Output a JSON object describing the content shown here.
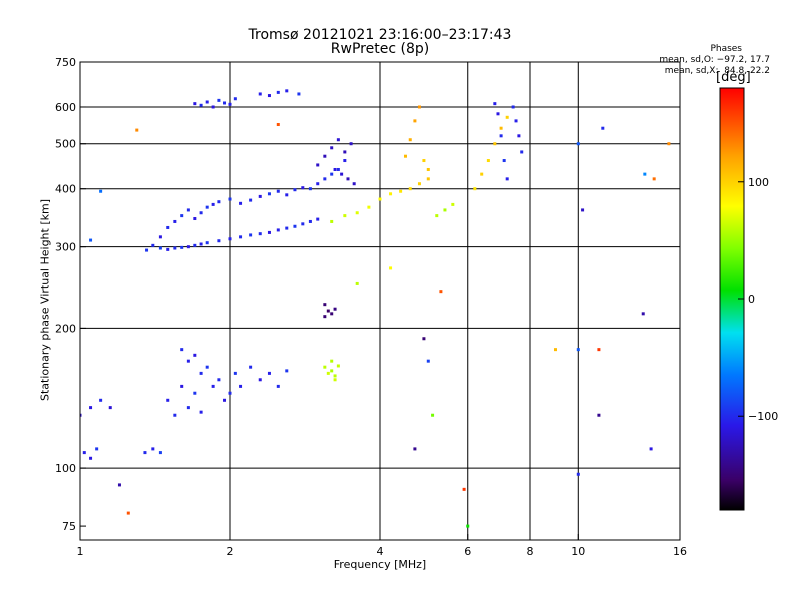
{
  "header": {
    "title": "Tromsø 20121021 23:16:00–23:17:43",
    "subtitle": "RwPretec (8p)"
  },
  "stats": {
    "heading": "Phases",
    "line_o": "mean, sd,O: −97.2, 17.7",
    "line_x": "mean, sd,X:  84.8, 22.2"
  },
  "colorbar": {
    "unit": "[deg]",
    "ticks": [
      {
        "value": 100,
        "label": "100"
      },
      {
        "value": 0,
        "label": "0"
      },
      {
        "value": -100,
        "label": "−100"
      }
    ],
    "range": [
      -180,
      180
    ]
  },
  "chart_data": {
    "type": "scatter",
    "title": "Tromsø 20121021 23:16:00–23:17:43",
    "subtitle": "RwPretec (8p)",
    "xlabel": "Frequency [MHz]",
    "ylabel": "Stationary phase Virtual Height [km]",
    "x_scale": "log",
    "y_scale": "log",
    "xlim": [
      1,
      16
    ],
    "ylim": [
      70,
      750
    ],
    "xticks": [
      {
        "value": 1,
        "label": "1"
      },
      {
        "value": 2,
        "label": "2"
      },
      {
        "value": 4,
        "label": "4"
      },
      {
        "value": 6,
        "label": "6"
      },
      {
        "value": 8,
        "label": "8"
      },
      {
        "value": 10,
        "label": "10"
      },
      {
        "value": 16,
        "label": "16"
      }
    ],
    "yticks": [
      {
        "value": 75,
        "label": "75"
      },
      {
        "value": 100,
        "label": "100"
      },
      {
        "value": 200,
        "label": "200"
      },
      {
        "value": 300,
        "label": "300"
      },
      {
        "value": 400,
        "label": "400"
      },
      {
        "value": 500,
        "label": "500"
      },
      {
        "value": 600,
        "label": "600"
      },
      {
        "value": 750,
        "label": "750"
      }
    ],
    "vgrid": [
      2,
      4,
      6,
      8,
      10
    ],
    "hgrid": [
      100,
      200,
      300,
      400,
      500,
      600
    ],
    "grid": true,
    "color_scale": "phase [deg]",
    "series": [
      {
        "values": [
          [
            1.0,
            130,
            -120
          ],
          [
            1.05,
            135,
            -110
          ],
          [
            1.1,
            140,
            -100
          ],
          [
            1.15,
            135,
            -115
          ],
          [
            1.02,
            108,
            -105
          ],
          [
            1.05,
            105,
            -110
          ],
          [
            1.08,
            110,
            -95
          ],
          [
            1.35,
            108,
            -100
          ],
          [
            1.4,
            110,
            -105
          ],
          [
            1.45,
            108,
            -90
          ],
          [
            1.05,
            310,
            -80
          ],
          [
            1.1,
            395,
            -70
          ],
          [
            1.2,
            92,
            -130
          ],
          [
            1.25,
            80,
            150
          ],
          [
            1.3,
            535,
            130
          ]
        ]
      },
      {
        "values": [
          [
            1.36,
            295,
            -95
          ],
          [
            1.4,
            302,
            -100
          ],
          [
            1.45,
            298,
            -90
          ],
          [
            1.5,
            296,
            -105
          ],
          [
            1.55,
            298,
            -100
          ],
          [
            1.6,
            299,
            -95
          ],
          [
            1.65,
            300,
            -110
          ],
          [
            1.7,
            302,
            -100
          ],
          [
            1.75,
            304,
            -105
          ],
          [
            1.8,
            306,
            -95
          ],
          [
            1.9,
            309,
            -100
          ],
          [
            2.0,
            312,
            -105
          ],
          [
            2.1,
            315,
            -100
          ],
          [
            2.2,
            318,
            -95
          ],
          [
            2.3,
            320,
            -100
          ],
          [
            2.4,
            322,
            -110
          ],
          [
            2.5,
            326,
            -105
          ],
          [
            2.6,
            329,
            -100
          ],
          [
            2.7,
            332,
            -95
          ],
          [
            2.8,
            336,
            -100
          ],
          [
            2.9,
            340,
            -100
          ],
          [
            3.0,
            344,
            -105
          ]
        ]
      },
      {
        "values": [
          [
            1.45,
            315,
            -110
          ],
          [
            1.5,
            330,
            -100
          ],
          [
            1.55,
            340,
            -105
          ],
          [
            1.6,
            350,
            -95
          ],
          [
            1.65,
            360,
            -100
          ],
          [
            1.7,
            345,
            -110
          ],
          [
            1.75,
            355,
            -100
          ],
          [
            1.8,
            365,
            -95
          ],
          [
            1.85,
            370,
            -105
          ],
          [
            1.9,
            375,
            -100
          ],
          [
            2.0,
            380,
            -95
          ],
          [
            2.1,
            372,
            -105
          ],
          [
            2.2,
            378,
            -100
          ],
          [
            2.3,
            385,
            -110
          ],
          [
            2.4,
            390,
            -95
          ],
          [
            2.5,
            395,
            -100
          ],
          [
            2.6,
            388,
            -105
          ],
          [
            2.7,
            398,
            -100
          ],
          [
            2.8,
            402,
            -110
          ],
          [
            2.9,
            400,
            -95
          ],
          [
            3.0,
            410,
            -105
          ],
          [
            3.1,
            420,
            -100
          ],
          [
            3.2,
            430,
            -95
          ],
          [
            3.3,
            440,
            -100
          ],
          [
            3.4,
            460,
            -105
          ]
        ]
      },
      {
        "values": [
          [
            3.0,
            450,
            -120
          ],
          [
            3.1,
            470,
            -125
          ],
          [
            3.2,
            490,
            -120
          ],
          [
            3.3,
            510,
            -115
          ],
          [
            3.4,
            480,
            -125
          ],
          [
            3.5,
            500,
            -120
          ],
          [
            3.35,
            430,
            -115
          ],
          [
            3.45,
            420,
            -125
          ],
          [
            3.55,
            410,
            -120
          ],
          [
            3.25,
            440,
            -110
          ]
        ]
      },
      {
        "values": [
          [
            1.7,
            610,
            -110
          ],
          [
            1.75,
            605,
            -100
          ],
          [
            1.8,
            615,
            -105
          ],
          [
            1.85,
            600,
            -110
          ],
          [
            1.9,
            620,
            -95
          ],
          [
            1.95,
            612,
            -100
          ],
          [
            2.0,
            608,
            -105
          ],
          [
            2.05,
            625,
            -100
          ],
          [
            2.3,
            640,
            -105
          ],
          [
            2.4,
            635,
            -110
          ],
          [
            2.5,
            645,
            -100
          ],
          [
            2.6,
            650,
            -105
          ],
          [
            2.75,
            640,
            -95
          ]
        ]
      },
      {
        "values": [
          [
            3.1,
            225,
            -150
          ],
          [
            3.15,
            218,
            -155
          ],
          [
            3.2,
            215,
            -150
          ],
          [
            3.25,
            220,
            -145
          ],
          [
            3.1,
            212,
            -150
          ]
        ]
      },
      {
        "values": [
          [
            3.1,
            165,
            60
          ],
          [
            3.15,
            160,
            65
          ],
          [
            3.2,
            162,
            55
          ],
          [
            3.25,
            158,
            60
          ],
          [
            3.3,
            166,
            62
          ],
          [
            3.2,
            170,
            58
          ],
          [
            3.25,
            155,
            65
          ]
        ]
      },
      {
        "values": [
          [
            3.2,
            340,
            60
          ],
          [
            3.4,
            350,
            65
          ],
          [
            3.6,
            355,
            70
          ],
          [
            3.8,
            365,
            75
          ],
          [
            4.0,
            380,
            80
          ],
          [
            4.2,
            390,
            85
          ],
          [
            4.4,
            395,
            90
          ],
          [
            4.6,
            400,
            95
          ],
          [
            4.8,
            410,
            100
          ],
          [
            5.0,
            420,
            105
          ],
          [
            4.5,
            470,
            110
          ],
          [
            4.6,
            510,
            115
          ],
          [
            4.7,
            560,
            120
          ],
          [
            4.8,
            600,
            125
          ],
          [
            4.9,
            460,
            100
          ],
          [
            5.0,
            440,
            105
          ],
          [
            5.2,
            350,
            60
          ],
          [
            5.4,
            360,
            55
          ],
          [
            5.6,
            370,
            65
          ]
        ]
      },
      {
        "values": [
          [
            6.2,
            400,
            90
          ],
          [
            6.4,
            430,
            100
          ],
          [
            6.6,
            460,
            95
          ],
          [
            6.8,
            500,
            105
          ],
          [
            7.0,
            540,
            110
          ],
          [
            7.2,
            570,
            100
          ],
          [
            7.4,
            600,
            -100
          ],
          [
            7.5,
            560,
            -105
          ],
          [
            7.6,
            520,
            -110
          ],
          [
            7.7,
            480,
            -100
          ],
          [
            6.8,
            610,
            -105
          ],
          [
            6.9,
            580,
            -110
          ],
          [
            7.0,
            520,
            -100
          ],
          [
            7.1,
            460,
            -95
          ],
          [
            7.2,
            420,
            -105
          ]
        ]
      },
      {
        "values": [
          [
            1.6,
            180,
            -100
          ],
          [
            1.65,
            170,
            -105
          ],
          [
            1.7,
            175,
            -110
          ],
          [
            1.75,
            160,
            -100
          ],
          [
            1.8,
            165,
            -95
          ],
          [
            1.85,
            150,
            -105
          ],
          [
            1.9,
            155,
            -100
          ],
          [
            1.95,
            140,
            -110
          ],
          [
            2.0,
            145,
            -100
          ],
          [
            2.05,
            160,
            -95
          ],
          [
            2.1,
            150,
            -105
          ],
          [
            2.2,
            165,
            -100
          ],
          [
            2.3,
            155,
            -110
          ],
          [
            2.4,
            160,
            -105
          ],
          [
            2.5,
            150,
            -100
          ],
          [
            2.6,
            162,
            -95
          ],
          [
            1.5,
            140,
            -105
          ],
          [
            1.55,
            130,
            -100
          ],
          [
            1.6,
            150,
            -110
          ],
          [
            1.65,
            135,
            -100
          ],
          [
            1.7,
            145,
            -95
          ],
          [
            1.75,
            132,
            -105
          ]
        ]
      },
      {
        "values": [
          [
            2.5,
            550,
            150
          ],
          [
            3.6,
            250,
            60
          ],
          [
            4.2,
            270,
            80
          ],
          [
            4.7,
            110,
            -140
          ],
          [
            4.9,
            190,
            -150
          ],
          [
            5.0,
            170,
            -90
          ],
          [
            5.1,
            130,
            40
          ],
          [
            5.3,
            240,
            150
          ],
          [
            5.9,
            90,
            160
          ],
          [
            6.0,
            75,
            10
          ],
          [
            9.0,
            180,
            110
          ],
          [
            10.0,
            500,
            -80
          ],
          [
            10.2,
            360,
            -120
          ],
          [
            10.0,
            180,
            -80
          ],
          [
            10.0,
            97,
            -100
          ],
          [
            11.0,
            130,
            -140
          ],
          [
            11.0,
            180,
            160
          ],
          [
            11.2,
            540,
            -100
          ],
          [
            13.5,
            215,
            -130
          ],
          [
            14.0,
            110,
            -110
          ],
          [
            15.2,
            500,
            130
          ],
          [
            14.2,
            420,
            140
          ],
          [
            13.6,
            430,
            -60
          ]
        ]
      }
    ]
  }
}
